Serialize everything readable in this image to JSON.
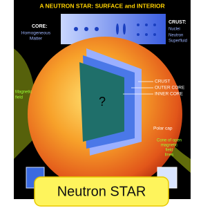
{
  "header": {
    "title": "A NEUTRON STAR: SURFACE and INTERIOR"
  },
  "labels": {
    "core": "CORE:",
    "core_desc": [
      "Homogeneous",
      "Matter"
    ],
    "crust": "CRUST:",
    "crust_desc": [
      "Nuclei",
      "Neutron",
      "Superfluid"
    ],
    "magnetic": [
      "Magnetic",
      "field"
    ],
    "layers": [
      "CRUST",
      "OUTER CORE",
      "INNER CORE"
    ],
    "unknown": "?",
    "polar_cap": "Polar cap",
    "cone": [
      "Cone of open",
      "magnetic",
      "field",
      "lines"
    ]
  },
  "caption": "Neutron STAR"
}
